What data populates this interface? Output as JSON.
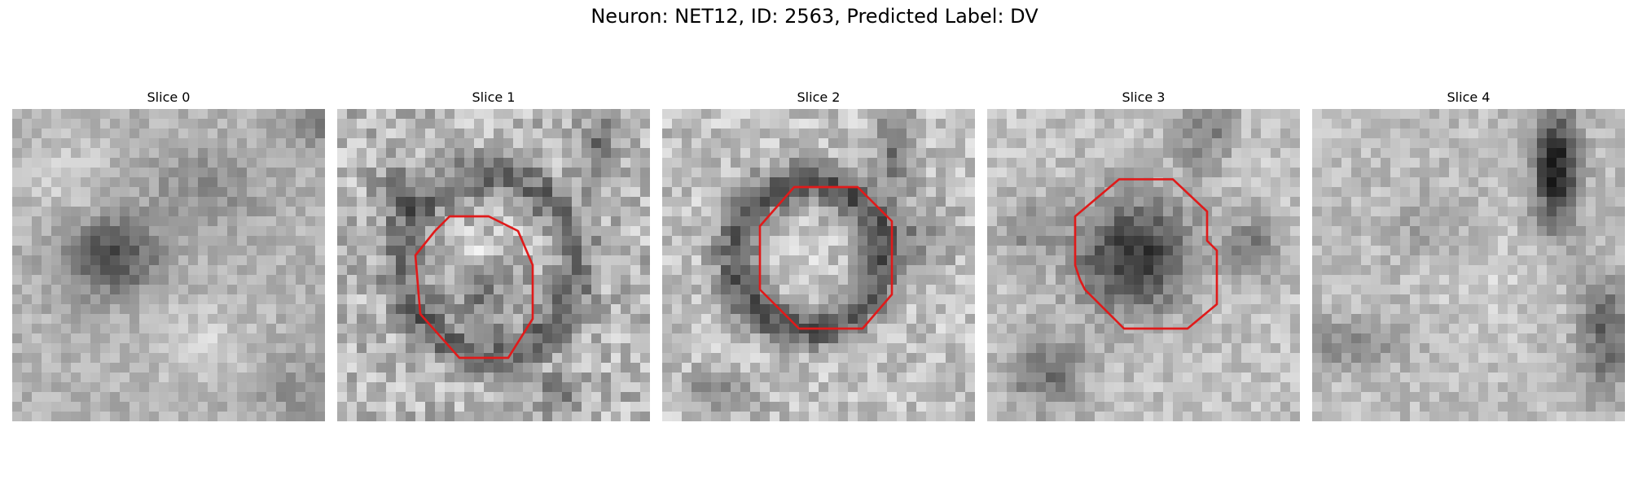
{
  "figure": {
    "title": "Neuron: NET12, ID: 2563, Predicted Label: DV"
  },
  "colors": {
    "contour": "#e01a1a",
    "background": "#ffffff"
  },
  "panels": [
    {
      "title": "Slice 0",
      "contour": null,
      "pattern": "dark-blob-center-left",
      "has_contour": false
    },
    {
      "title": "Slice 1",
      "contour": "octagon",
      "pattern": "ring-textured-light",
      "has_contour": true
    },
    {
      "title": "Slice 2",
      "contour": "octagon",
      "pattern": "dark-ring-light-center",
      "has_contour": true
    },
    {
      "title": "Slice 3",
      "contour": "octagon",
      "pattern": "dark-filled-center",
      "has_contour": true
    },
    {
      "title": "Slice 4",
      "contour": null,
      "pattern": "light-with-dark-top-right",
      "has_contour": false
    }
  ]
}
